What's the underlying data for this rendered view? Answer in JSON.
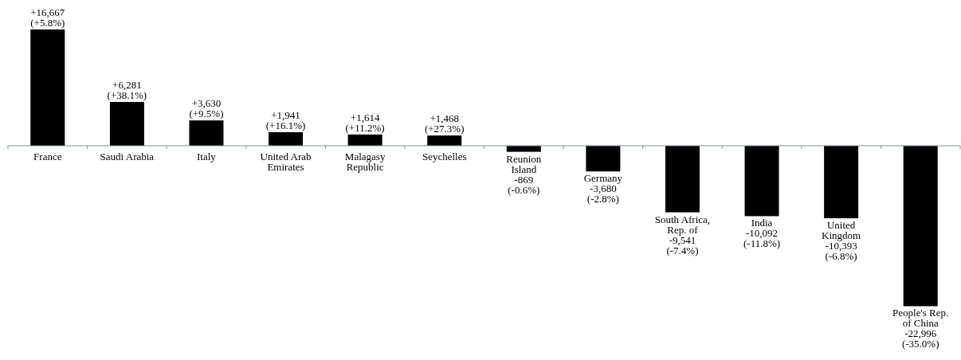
{
  "chart_data": {
    "type": "bar",
    "relative": false,
    "categories": [
      "France",
      "Saudi Arabia",
      "Italy",
      "United Arab Emirates",
      "Malagasy Republic",
      "Seychelles",
      "Reunion Island",
      "Germany",
      "South Africa, Rep. of",
      "India",
      "United Kingdom",
      "People's Rep. of China"
    ],
    "values": [
      16667,
      6281,
      3630,
      1941,
      1614,
      1468,
      -869,
      -3680,
      -9541,
      -10092,
      -10393,
      -22996
    ],
    "value_labels": [
      "+16,667 (+5.8%)",
      "+6,281 (+38.1%)",
      "+3,630 (+9.5%)",
      "+1,941 (+16.1%)",
      "+1,614 (+11.2%)",
      "+1,468 (+27.3%)",
      "-869 (-0.6%)",
      "-3,680 (-2.8%)",
      "-9,541 (-7.4%)",
      "-10,092 (-11.8%)",
      "-10,393 (-6.8%)",
      "-22,996 (-35.0%)"
    ],
    "color": "#000000"
  }
}
